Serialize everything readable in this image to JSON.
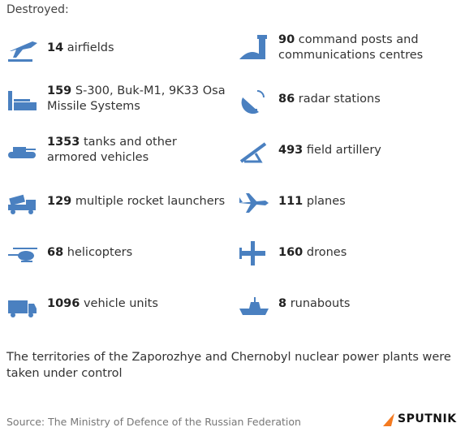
{
  "header": {
    "title": "Destroyed:"
  },
  "items": [
    {
      "count": 14,
      "label": "airfields"
    },
    {
      "count": 90,
      "label": "command posts and communications centres"
    },
    {
      "count": 159,
      "label": "S-300, Buk-M1, 9K33 Osa Missile Systems"
    },
    {
      "count": 86,
      "label": "radar stations"
    },
    {
      "count": 1353,
      "label": "tanks and other armored vehicles"
    },
    {
      "count": 493,
      "label": "field artillery"
    },
    {
      "count": 129,
      "label": "multiple rocket launchers"
    },
    {
      "count": 111,
      "label": "planes"
    },
    {
      "count": 68,
      "label": "helicopters"
    },
    {
      "count": 160,
      "label": "drones"
    },
    {
      "count": 1096,
      "label": "vehicle units"
    },
    {
      "count": 8,
      "label": "runabouts"
    }
  ],
  "note": "The territories of the Zaporozhye and Chernobyl nuclear power plants were taken under control",
  "source": "Source: The Ministry of Defence of the Russian Federation",
  "logo": "SPUTNIK"
}
